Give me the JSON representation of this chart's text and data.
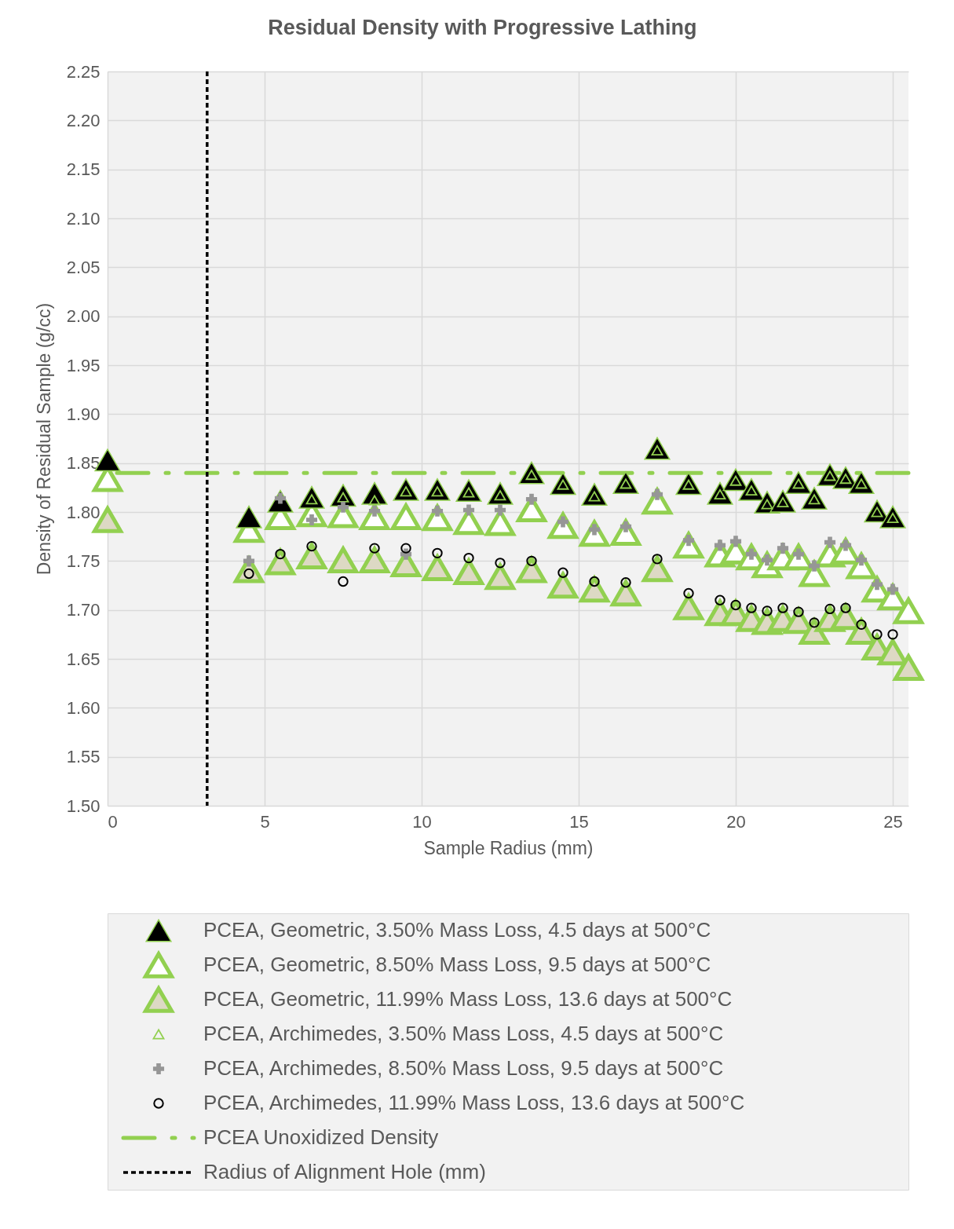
{
  "chart_data": {
    "type": "scatter",
    "title": "Residual Density with Progressive Lathing",
    "xlabel": "Sample Radius (mm)",
    "ylabel": "Density of Residual Sample (g/cc)",
    "xlim": [
      0,
      25.5
    ],
    "xticks": [
      0,
      5,
      10,
      15,
      20,
      25
    ],
    "ylim": [
      1.5,
      2.25
    ],
    "yticks": [
      {
        "value": 1.5,
        "label": "1.50"
      },
      {
        "value": 1.55,
        "label": "1.55"
      },
      {
        "value": 1.6,
        "label": "1.60"
      },
      {
        "value": 1.65,
        "label": "1.65"
      },
      {
        "value": 1.7,
        "label": "1.70"
      },
      {
        "value": 1.75,
        "label": "1.75"
      },
      {
        "value": 1.8,
        "label": "1.80"
      },
      {
        "value": 1.85,
        "label": "1.85"
      },
      {
        "value": 1.9,
        "label": "1.90"
      },
      {
        "value": 1.95,
        "label": "1.95"
      },
      {
        "value": 2.0,
        "label": "2.00"
      },
      {
        "value": 2.05,
        "label": "2.05"
      },
      {
        "value": 2.1,
        "label": "2.10"
      },
      {
        "value": 2.15,
        "label": "2.15"
      },
      {
        "value": 2.2,
        "label": "2.20"
      },
      {
        "value": 2.25,
        "label": "2.25"
      }
    ],
    "grid": true,
    "legend": "bottom",
    "series": [
      {
        "name": "PCEA, Geometric, 3.50% Mass Loss, 4.5 days at 500°C",
        "color": "#000000",
        "marker": "triangle",
        "x": [
          0,
          4.5,
          5.5,
          6.5,
          7.5,
          8.5,
          9.5,
          10.5,
          11.5,
          12.5,
          13.5,
          14.5,
          15.5,
          16.5,
          17.5,
          18.5,
          19.5,
          20,
          20.5,
          21,
          21.5,
          22,
          22.5,
          23,
          23.5,
          24,
          24.5,
          25
        ],
        "values": [
          1.853,
          1.795,
          1.811,
          1.815,
          1.817,
          1.819,
          1.823,
          1.823,
          1.822,
          1.819,
          1.84,
          1.829,
          1.818,
          1.83,
          1.865,
          1.829,
          1.819,
          1.833,
          1.823,
          1.81,
          1.811,
          1.83,
          1.814,
          1.838,
          1.835,
          1.83,
          1.801,
          1.795
        ]
      },
      {
        "name": "PCEA, Geometric, 8.50% Mass Loss, 9.5 days at 500°C",
        "color": "#ffffff",
        "marker": "triangle",
        "x": [
          0,
          4.5,
          5.5,
          6.5,
          7.5,
          8.5,
          9.5,
          10.5,
          11.5,
          12.5,
          13.5,
          14.5,
          15.5,
          16.5,
          17.5,
          18.5,
          19.5,
          20,
          20.5,
          21,
          21.5,
          22,
          22.5,
          23,
          23.5,
          24,
          24.5,
          25,
          25.5
        ],
        "values": [
          1.834,
          1.782,
          1.795,
          1.798,
          1.797,
          1.795,
          1.795,
          1.794,
          1.79,
          1.789,
          1.803,
          1.786,
          1.778,
          1.779,
          1.811,
          1.766,
          1.757,
          1.76,
          1.754,
          1.746,
          1.754,
          1.754,
          1.737,
          1.757,
          1.76,
          1.745,
          1.721,
          1.713,
          1.699
        ]
      },
      {
        "name": "PCEA, Geometric, 11.99% Mass Loss, 13.6 days at 500°C",
        "color": "#ddd9c4",
        "marker": "triangle",
        "x": [
          0,
          4.5,
          5.5,
          6.5,
          7.5,
          8.5,
          9.5,
          10.5,
          11.5,
          12.5,
          13.5,
          14.5,
          15.5,
          16.5,
          17.5,
          18.5,
          19.5,
          20,
          20.5,
          21,
          21.5,
          22,
          22.5,
          23,
          23.5,
          24,
          24.5,
          25,
          25.5
        ],
        "values": [
          1.792,
          1.741,
          1.749,
          1.755,
          1.751,
          1.751,
          1.747,
          1.743,
          1.739,
          1.734,
          1.741,
          1.725,
          1.721,
          1.717,
          1.742,
          1.703,
          1.697,
          1.697,
          1.691,
          1.688,
          1.691,
          1.689,
          1.678,
          1.691,
          1.693,
          1.678,
          1.662,
          1.657,
          1.641
        ]
      },
      {
        "name": "PCEA, Archimedes, 3.50% Mass Loss, 4.5 days at 500°C",
        "color": "#92d050",
        "marker": "triangle",
        "x": [
          6.5,
          7.5,
          8.5,
          9.5,
          10.5,
          11.5,
          12.5,
          13.5,
          14.5,
          15.5,
          16.5,
          17.5,
          18.5,
          19.5,
          20,
          20.5,
          21,
          21.5,
          22,
          22.5,
          23,
          23.5,
          24,
          24.5,
          25
        ],
        "values": [
          1.813,
          1.815,
          1.812,
          1.821,
          1.821,
          1.82,
          1.817,
          1.838,
          1.828,
          1.816,
          1.829,
          1.863,
          1.828,
          1.818,
          1.832,
          1.822,
          1.808,
          1.81,
          1.829,
          1.813,
          1.837,
          1.834,
          1.829,
          1.8,
          1.794
        ]
      },
      {
        "name": "PCEA, Archimedes, 8.50% Mass Loss, 9.5 days at 500°C",
        "color": "#969696",
        "marker": "cross",
        "x": [
          4.5,
          5.5,
          6.5,
          7.5,
          8.5,
          9.5,
          10.5,
          11.5,
          12.5,
          13.5,
          14.5,
          15.5,
          16.5,
          17.5,
          18.5,
          19.5,
          20,
          20.5,
          21,
          21.5,
          22,
          22.5,
          23,
          23.5,
          24,
          24.5,
          25
        ],
        "values": [
          1.75,
          1.814,
          1.792,
          1.805,
          1.801,
          1.757,
          1.801,
          1.802,
          1.802,
          1.813,
          1.79,
          1.782,
          1.785,
          1.818,
          1.771,
          1.766,
          1.77,
          1.757,
          1.751,
          1.763,
          1.757,
          1.745,
          1.769,
          1.766,
          1.751,
          1.726,
          1.721
        ]
      },
      {
        "name": "PCEA, Archimedes, 11.99% Mass Loss, 13.6 days at 500°C",
        "color": "#000000",
        "marker": "circle",
        "x": [
          4.5,
          5.5,
          6.5,
          7.5,
          8.5,
          9.5,
          10.5,
          11.5,
          12.5,
          13.5,
          14.5,
          15.5,
          16.5,
          17.5,
          18.5,
          19.5,
          20,
          20.5,
          21,
          21.5,
          22,
          22.5,
          23,
          23.5,
          24,
          24.5,
          25
        ],
        "values": [
          1.737,
          1.757,
          1.765,
          1.729,
          1.763,
          1.763,
          1.758,
          1.753,
          1.748,
          1.75,
          1.738,
          1.729,
          1.728,
          1.752,
          1.717,
          1.71,
          1.705,
          1.702,
          1.699,
          1.702,
          1.698,
          1.687,
          1.701,
          1.702,
          1.685,
          1.675,
          1.675
        ]
      }
    ],
    "ref_lines": [
      {
        "axis": "y",
        "value": 1.84,
        "label": "PCEA Unoxidized Density",
        "color": "#92d050",
        "line_style": "dashdot"
      },
      {
        "axis": "x",
        "value": 3.17,
        "label": "Radius of Alignment Hole (mm)",
        "color": "#000000",
        "line_style": "dashed"
      }
    ]
  }
}
